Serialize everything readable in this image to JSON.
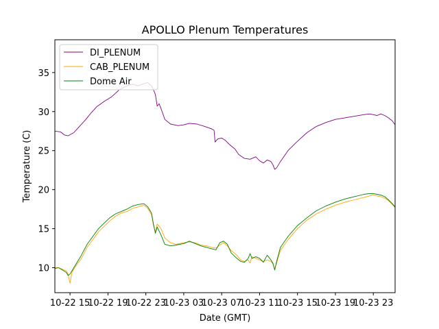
{
  "chart_data": {
    "type": "line",
    "title": "APOLLO Plenum Temperatures",
    "xlabel": "Date (GMT)",
    "ylabel": "Temperature (C)",
    "xlim": [
      12.4,
      48.3
    ],
    "ylim": [
      6.8,
      39.2
    ],
    "xticks": [
      {
        "x": 14,
        "label": "10-22 15"
      },
      {
        "x": 18,
        "label": "10-22 19"
      },
      {
        "x": 22,
        "label": "10-22 23"
      },
      {
        "x": 26,
        "label": "10-23 03"
      },
      {
        "x": 30,
        "label": "10-23 07"
      },
      {
        "x": 34,
        "label": "10-23 11"
      },
      {
        "x": 38,
        "label": "10-23 15"
      },
      {
        "x": 42,
        "label": "10-23 19"
      },
      {
        "x": 46,
        "label": "10-23 23"
      }
    ],
    "yticks": [
      10,
      15,
      20,
      25,
      30,
      35
    ],
    "legend_position": "top-left",
    "series": [
      {
        "name": "DI_PLENUM",
        "color": "#800080",
        "x": [
          12.4,
          13.0,
          13.4,
          13.8,
          14.4,
          15.0,
          15.6,
          16.2,
          16.8,
          17.6,
          18.4,
          19.2,
          20.0,
          20.6,
          21.2,
          21.8,
          22.2,
          22.6,
          22.8,
          23.0,
          23.2,
          23.4,
          23.6,
          24.0,
          24.6,
          25.4,
          26.0,
          26.6,
          27.4,
          28.2,
          28.9,
          29.2,
          29.3,
          29.6,
          30.0,
          30.4,
          30.8,
          31.4,
          31.8,
          32.4,
          33.0,
          33.6,
          34.0,
          34.4,
          34.8,
          35.2,
          35.4,
          35.6,
          35.8,
          36.2,
          37.0,
          38.0,
          39.0,
          40.0,
          41.0,
          42.0,
          43.0,
          44.0,
          45.0,
          45.6,
          46.0,
          46.4,
          46.8,
          47.2,
          47.6,
          48.0,
          48.3
        ],
        "values": [
          27.5,
          27.4,
          27.0,
          26.9,
          27.3,
          28.1,
          28.9,
          29.8,
          30.6,
          31.3,
          31.9,
          32.8,
          33.3,
          33.5,
          33.3,
          33.6,
          33.7,
          33.3,
          32.8,
          32.2,
          30.7,
          31.0,
          30.4,
          29.0,
          28.4,
          28.2,
          28.3,
          28.5,
          28.4,
          28.1,
          27.8,
          27.6,
          26.1,
          26.5,
          26.6,
          26.3,
          25.8,
          25.2,
          24.5,
          24.0,
          23.9,
          24.2,
          23.7,
          23.4,
          23.8,
          23.6,
          23.2,
          22.6,
          22.8,
          23.6,
          25.0,
          26.2,
          27.3,
          28.1,
          28.6,
          29.0,
          29.2,
          29.4,
          29.6,
          29.7,
          29.6,
          29.5,
          29.7,
          29.5,
          29.2,
          28.8,
          28.3
        ]
      },
      {
        "name": "CAB_PLENUM",
        "color": "#ffa500",
        "x": [
          12.4,
          12.8,
          13.2,
          13.6,
          13.8,
          14.0,
          14.2,
          14.6,
          15.2,
          15.8,
          16.4,
          17.0,
          17.6,
          18.2,
          18.8,
          19.4,
          20.0,
          20.6,
          21.2,
          21.8,
          22.2,
          22.6,
          22.8,
          23.0,
          23.2,
          23.6,
          24.0,
          24.6,
          25.2,
          26.0,
          26.6,
          27.2,
          27.8,
          28.4,
          29.0,
          29.4,
          29.8,
          30.2,
          30.6,
          31.0,
          31.6,
          32.0,
          32.4,
          32.8,
          33.0,
          33.2,
          33.6,
          34.0,
          34.4,
          34.8,
          35.2,
          35.4,
          35.6,
          35.8,
          36.2,
          37.0,
          38.0,
          39.0,
          40.0,
          41.0,
          42.0,
          43.0,
          44.0,
          45.0,
          45.6,
          46.0,
          46.4,
          46.8,
          47.2,
          47.6,
          48.0,
          48.3
        ],
        "values": [
          10.0,
          10.0,
          9.8,
          9.6,
          9.2,
          8.0,
          9.4,
          10.2,
          11.2,
          12.6,
          13.6,
          14.6,
          15.3,
          16.0,
          16.6,
          17.0,
          17.2,
          17.6,
          17.8,
          18.0,
          17.6,
          16.8,
          15.4,
          14.6,
          15.6,
          15.0,
          13.8,
          13.2,
          13.0,
          13.2,
          13.3,
          13.2,
          12.9,
          12.8,
          12.6,
          12.5,
          12.9,
          13.2,
          12.8,
          12.2,
          11.6,
          11.0,
          10.8,
          11.0,
          10.6,
          11.4,
          11.2,
          11.0,
          10.8,
          11.0,
          10.8,
          10.5,
          9.8,
          10.6,
          12.2,
          13.6,
          15.0,
          16.1,
          16.9,
          17.5,
          18.0,
          18.4,
          18.7,
          19.0,
          19.2,
          19.3,
          19.2,
          19.1,
          18.9,
          18.6,
          18.1,
          17.7
        ]
      },
      {
        "name": "Dome Air",
        "color": "#008000",
        "x": [
          12.4,
          12.8,
          13.2,
          13.6,
          13.8,
          14.0,
          14.2,
          14.6,
          15.2,
          15.8,
          16.4,
          17.0,
          17.6,
          18.2,
          18.8,
          19.4,
          20.0,
          20.6,
          21.2,
          21.8,
          22.2,
          22.6,
          22.8,
          23.0,
          23.2,
          23.6,
          24.0,
          24.6,
          25.2,
          26.0,
          26.6,
          27.2,
          27.8,
          28.4,
          29.0,
          29.4,
          29.8,
          30.2,
          30.6,
          31.0,
          31.6,
          32.0,
          32.4,
          32.8,
          33.0,
          33.2,
          33.6,
          34.0,
          34.4,
          34.8,
          35.2,
          35.4,
          35.6,
          35.8,
          36.2,
          37.0,
          38.0,
          39.0,
          40.0,
          41.0,
          42.0,
          43.0,
          44.0,
          45.0,
          45.6,
          46.0,
          46.4,
          46.8,
          47.2,
          47.6,
          48.0,
          48.3
        ],
        "values": [
          9.9,
          10.0,
          9.7,
          9.4,
          9.0,
          9.2,
          9.6,
          10.4,
          11.6,
          13.0,
          14.0,
          15.0,
          15.7,
          16.4,
          16.9,
          17.2,
          17.5,
          17.9,
          18.1,
          18.2,
          17.8,
          17.0,
          15.6,
          14.4,
          15.2,
          14.2,
          13.0,
          12.8,
          12.9,
          13.1,
          13.4,
          13.1,
          12.8,
          12.6,
          12.4,
          12.3,
          13.2,
          13.4,
          13.0,
          11.9,
          11.2,
          10.8,
          10.7,
          11.2,
          11.8,
          11.2,
          11.4,
          11.2,
          10.7,
          11.6,
          11.0,
          10.6,
          9.7,
          10.8,
          12.6,
          14.0,
          15.4,
          16.4,
          17.3,
          17.9,
          18.4,
          18.8,
          19.1,
          19.4,
          19.5,
          19.5,
          19.4,
          19.3,
          19.1,
          18.7,
          18.2,
          17.8
        ]
      }
    ]
  }
}
